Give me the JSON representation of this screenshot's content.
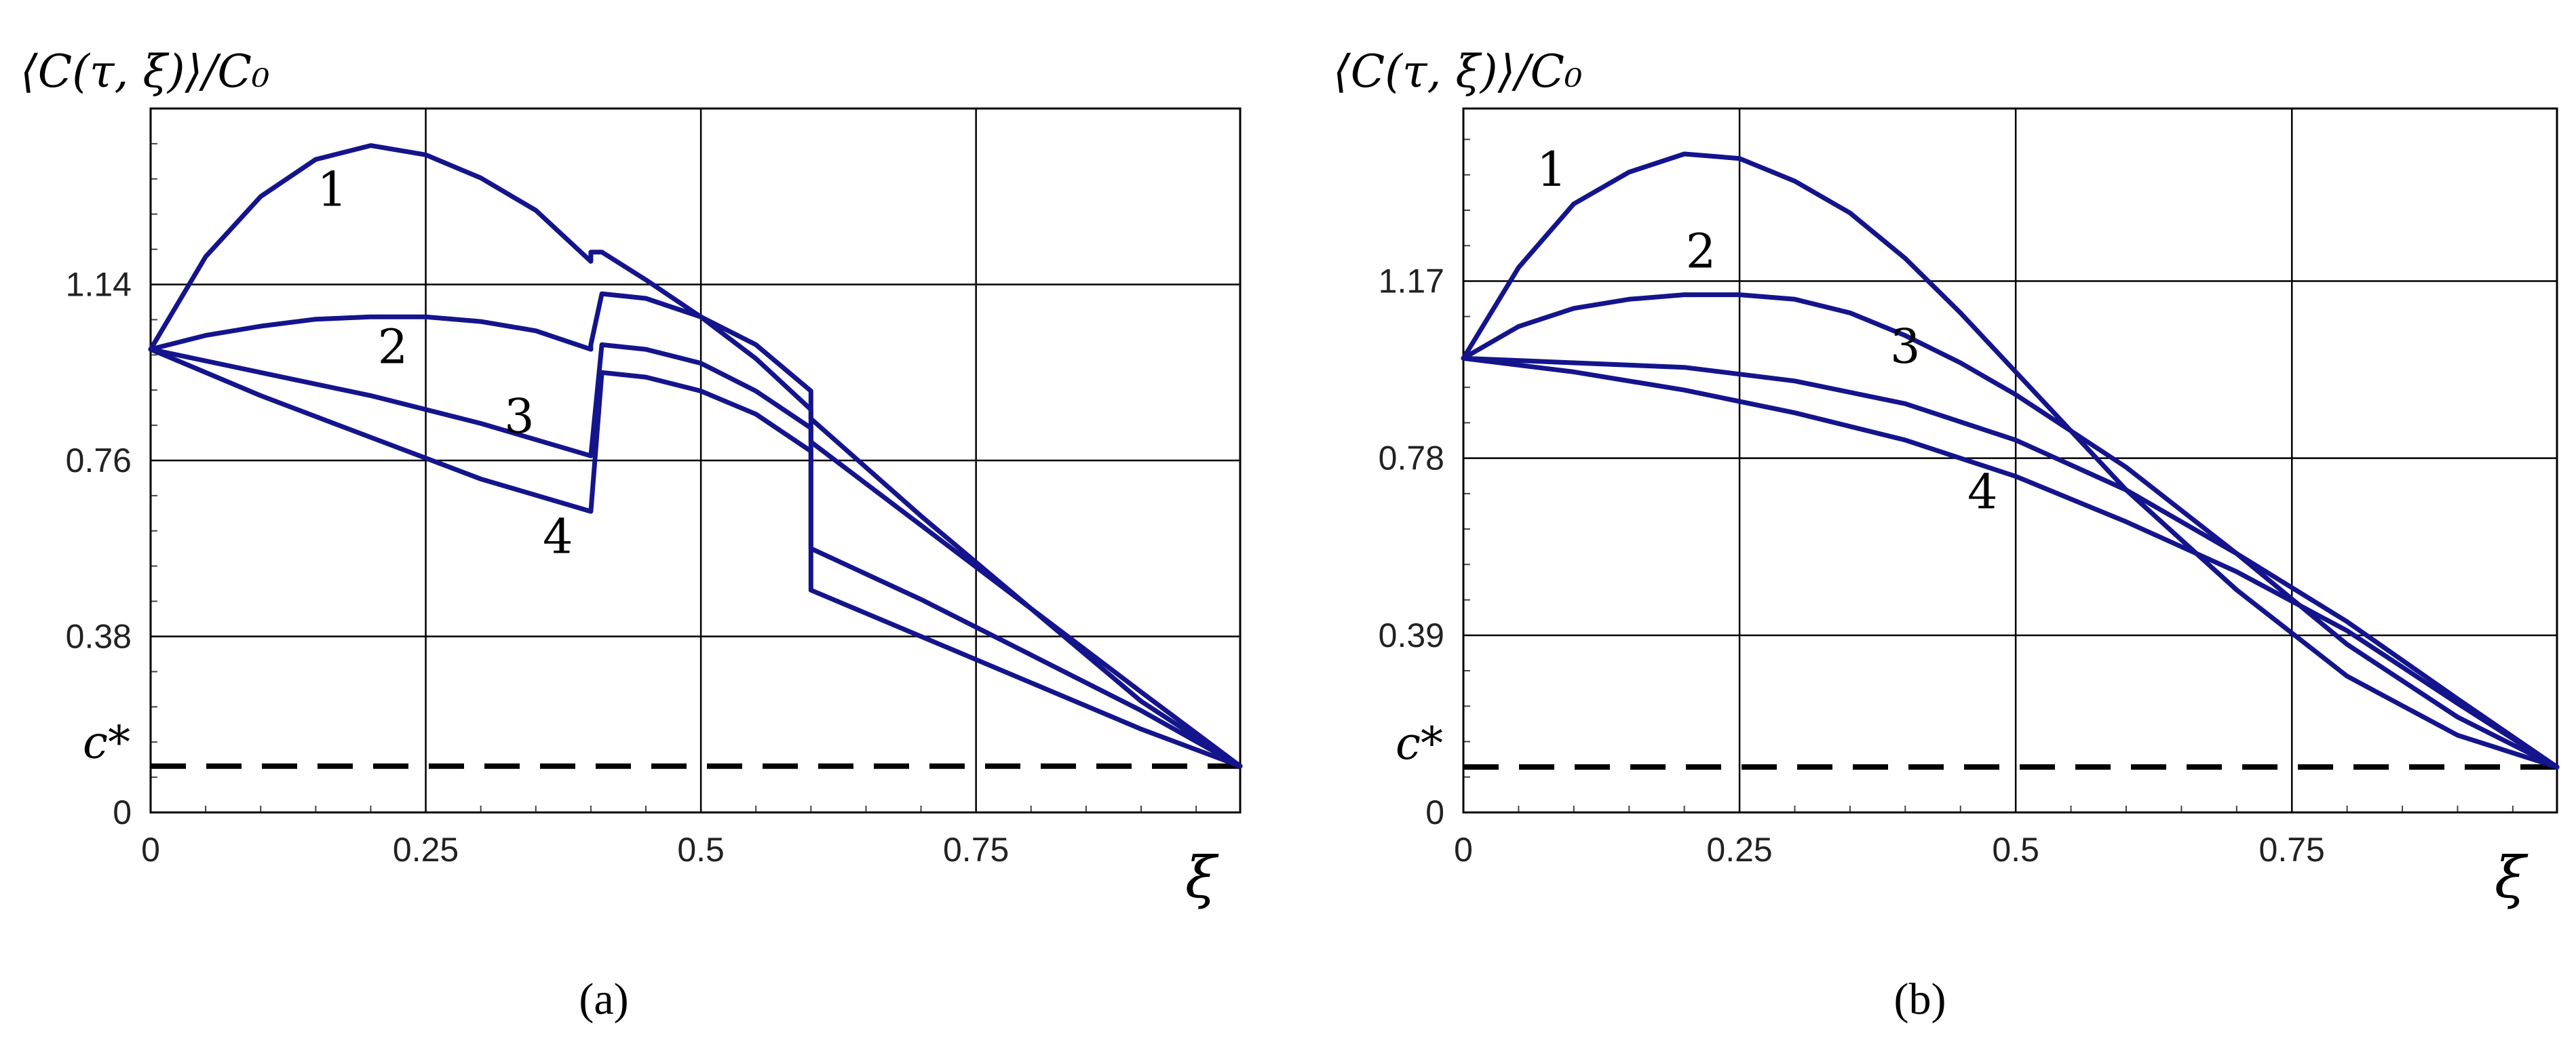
{
  "chart_data": [
    {
      "type": "line",
      "panel_label": "(a)",
      "ylabel": "⟨C(τ, ξ)⟩/C₀",
      "xlabel": "ξ",
      "xlim": [
        0,
        0.99
      ],
      "ylim": [
        0,
        1.52
      ],
      "xticks": [
        0,
        0.25,
        0.5,
        0.75
      ],
      "xtick_labels": [
        "0",
        "0.25",
        "0.5",
        "0.75"
      ],
      "yticks": [
        0,
        0.38,
        0.76,
        1.14
      ],
      "ytick_labels": [
        "0",
        "0.38",
        "0.76",
        "1.14"
      ],
      "grid": true,
      "line_color": "#14148c",
      "reference_line": {
        "label": "c*",
        "y": 0.1,
        "style": "dashed",
        "color": "#000000"
      },
      "series": [
        {
          "name": "1",
          "label_at": [
            0.165,
            1.31
          ],
          "points": [
            [
              0,
              1.0
            ],
            [
              0.05,
              1.2
            ],
            [
              0.1,
              1.33
            ],
            [
              0.15,
              1.41
            ],
            [
              0.2,
              1.44
            ],
            [
              0.25,
              1.42
            ],
            [
              0.3,
              1.37
            ],
            [
              0.35,
              1.3
            ],
            [
              0.4,
              1.19
            ],
            [
              0.4,
              1.21
            ],
            [
              0.41,
              1.21
            ],
            [
              0.45,
              1.15
            ],
            [
              0.5,
              1.07
            ],
            [
              0.55,
              0.98
            ],
            [
              0.6,
              0.87
            ],
            [
              0.6,
              0.85
            ],
            [
              0.7,
              0.64
            ],
            [
              0.8,
              0.44
            ],
            [
              0.9,
              0.24
            ],
            [
              0.99,
              0.1
            ]
          ]
        },
        {
          "name": "2",
          "label_at": [
            0.22,
            0.97
          ],
          "points": [
            [
              0,
              1.0
            ],
            [
              0.05,
              1.03
            ],
            [
              0.1,
              1.05
            ],
            [
              0.15,
              1.065
            ],
            [
              0.2,
              1.07
            ],
            [
              0.25,
              1.07
            ],
            [
              0.3,
              1.06
            ],
            [
              0.35,
              1.04
            ],
            [
              0.4,
              1.0
            ],
            [
              0.4,
              1.01
            ],
            [
              0.41,
              1.12
            ],
            [
              0.45,
              1.11
            ],
            [
              0.5,
              1.07
            ],
            [
              0.55,
              1.01
            ],
            [
              0.6,
              0.91
            ],
            [
              0.6,
              0.8
            ],
            [
              0.7,
              0.62
            ],
            [
              0.8,
              0.44
            ],
            [
              0.9,
              0.26
            ],
            [
              0.99,
              0.1
            ]
          ]
        },
        {
          "name": "3",
          "label_at": [
            0.335,
            0.82
          ],
          "points": [
            [
              0,
              1.0
            ],
            [
              0.1,
              0.95
            ],
            [
              0.2,
              0.9
            ],
            [
              0.3,
              0.84
            ],
            [
              0.4,
              0.77
            ],
            [
              0.41,
              1.01
            ],
            [
              0.45,
              1.0
            ],
            [
              0.5,
              0.97
            ],
            [
              0.55,
              0.91
            ],
            [
              0.6,
              0.83
            ],
            [
              0.6,
              0.57
            ],
            [
              0.7,
              0.46
            ],
            [
              0.8,
              0.34
            ],
            [
              0.9,
              0.22
            ],
            [
              0.99,
              0.1
            ]
          ]
        },
        {
          "name": "4",
          "label_at": [
            0.37,
            0.56
          ],
          "points": [
            [
              0,
              1.0
            ],
            [
              0.1,
              0.9
            ],
            [
              0.2,
              0.81
            ],
            [
              0.3,
              0.72
            ],
            [
              0.4,
              0.65
            ],
            [
              0.41,
              0.95
            ],
            [
              0.45,
              0.94
            ],
            [
              0.5,
              0.91
            ],
            [
              0.55,
              0.86
            ],
            [
              0.6,
              0.78
            ],
            [
              0.6,
              0.48
            ],
            [
              0.7,
              0.38
            ],
            [
              0.8,
              0.28
            ],
            [
              0.9,
              0.18
            ],
            [
              0.99,
              0.1
            ]
          ]
        }
      ]
    },
    {
      "type": "line",
      "panel_label": "(b)",
      "ylabel": "⟨C(τ, ξ)⟩/C₀",
      "xlabel": "ξ",
      "xlim": [
        0,
        0.99
      ],
      "ylim": [
        0,
        1.55
      ],
      "xticks": [
        0,
        0.25,
        0.5,
        0.75
      ],
      "xtick_labels": [
        "0",
        "0.25",
        "0.5",
        "0.75"
      ],
      "yticks": [
        0,
        0.39,
        0.78,
        1.17
      ],
      "ytick_labels": [
        "0",
        "0.39",
        "0.78",
        "1.17"
      ],
      "grid": true,
      "line_color": "#14148c",
      "reference_line": {
        "label": "c*",
        "y": 0.1,
        "style": "dashed",
        "color": "#000000"
      },
      "series": [
        {
          "name": "1",
          "label_at": [
            0.08,
            1.38
          ],
          "points": [
            [
              0,
              1.0
            ],
            [
              0.05,
              1.2
            ],
            [
              0.1,
              1.34
            ],
            [
              0.15,
              1.41
            ],
            [
              0.2,
              1.45
            ],
            [
              0.25,
              1.44
            ],
            [
              0.3,
              1.39
            ],
            [
              0.35,
              1.32
            ],
            [
              0.4,
              1.22
            ],
            [
              0.45,
              1.1
            ],
            [
              0.5,
              0.97
            ],
            [
              0.55,
              0.84
            ],
            [
              0.6,
              0.71
            ],
            [
              0.7,
              0.49
            ],
            [
              0.8,
              0.3
            ],
            [
              0.9,
              0.17
            ],
            [
              0.99,
              0.1
            ]
          ]
        },
        {
          "name": "2",
          "label_at": [
            0.215,
            1.2
          ],
          "points": [
            [
              0,
              1.0
            ],
            [
              0.05,
              1.07
            ],
            [
              0.1,
              1.11
            ],
            [
              0.15,
              1.13
            ],
            [
              0.2,
              1.14
            ],
            [
              0.25,
              1.14
            ],
            [
              0.3,
              1.13
            ],
            [
              0.35,
              1.1
            ],
            [
              0.4,
              1.05
            ],
            [
              0.45,
              0.99
            ],
            [
              0.5,
              0.92
            ],
            [
              0.6,
              0.76
            ],
            [
              0.7,
              0.57
            ],
            [
              0.8,
              0.37
            ],
            [
              0.9,
              0.21
            ],
            [
              0.99,
              0.1
            ]
          ]
        },
        {
          "name": "3",
          "label_at": [
            0.4,
            0.99
          ],
          "points": [
            [
              0,
              1.0
            ],
            [
              0.1,
              0.99
            ],
            [
              0.2,
              0.98
            ],
            [
              0.3,
              0.95
            ],
            [
              0.4,
              0.9
            ],
            [
              0.5,
              0.82
            ],
            [
              0.6,
              0.71
            ],
            [
              0.7,
              0.57
            ],
            [
              0.8,
              0.42
            ],
            [
              0.9,
              0.25
            ],
            [
              0.99,
              0.1
            ]
          ]
        },
        {
          "name": "4",
          "label_at": [
            0.47,
            0.67
          ],
          "points": [
            [
              0,
              1.0
            ],
            [
              0.1,
              0.97
            ],
            [
              0.2,
              0.93
            ],
            [
              0.3,
              0.88
            ],
            [
              0.4,
              0.82
            ],
            [
              0.5,
              0.74
            ],
            [
              0.6,
              0.64
            ],
            [
              0.7,
              0.53
            ],
            [
              0.8,
              0.4
            ],
            [
              0.9,
              0.24
            ],
            [
              0.99,
              0.1
            ]
          ]
        }
      ]
    }
  ]
}
